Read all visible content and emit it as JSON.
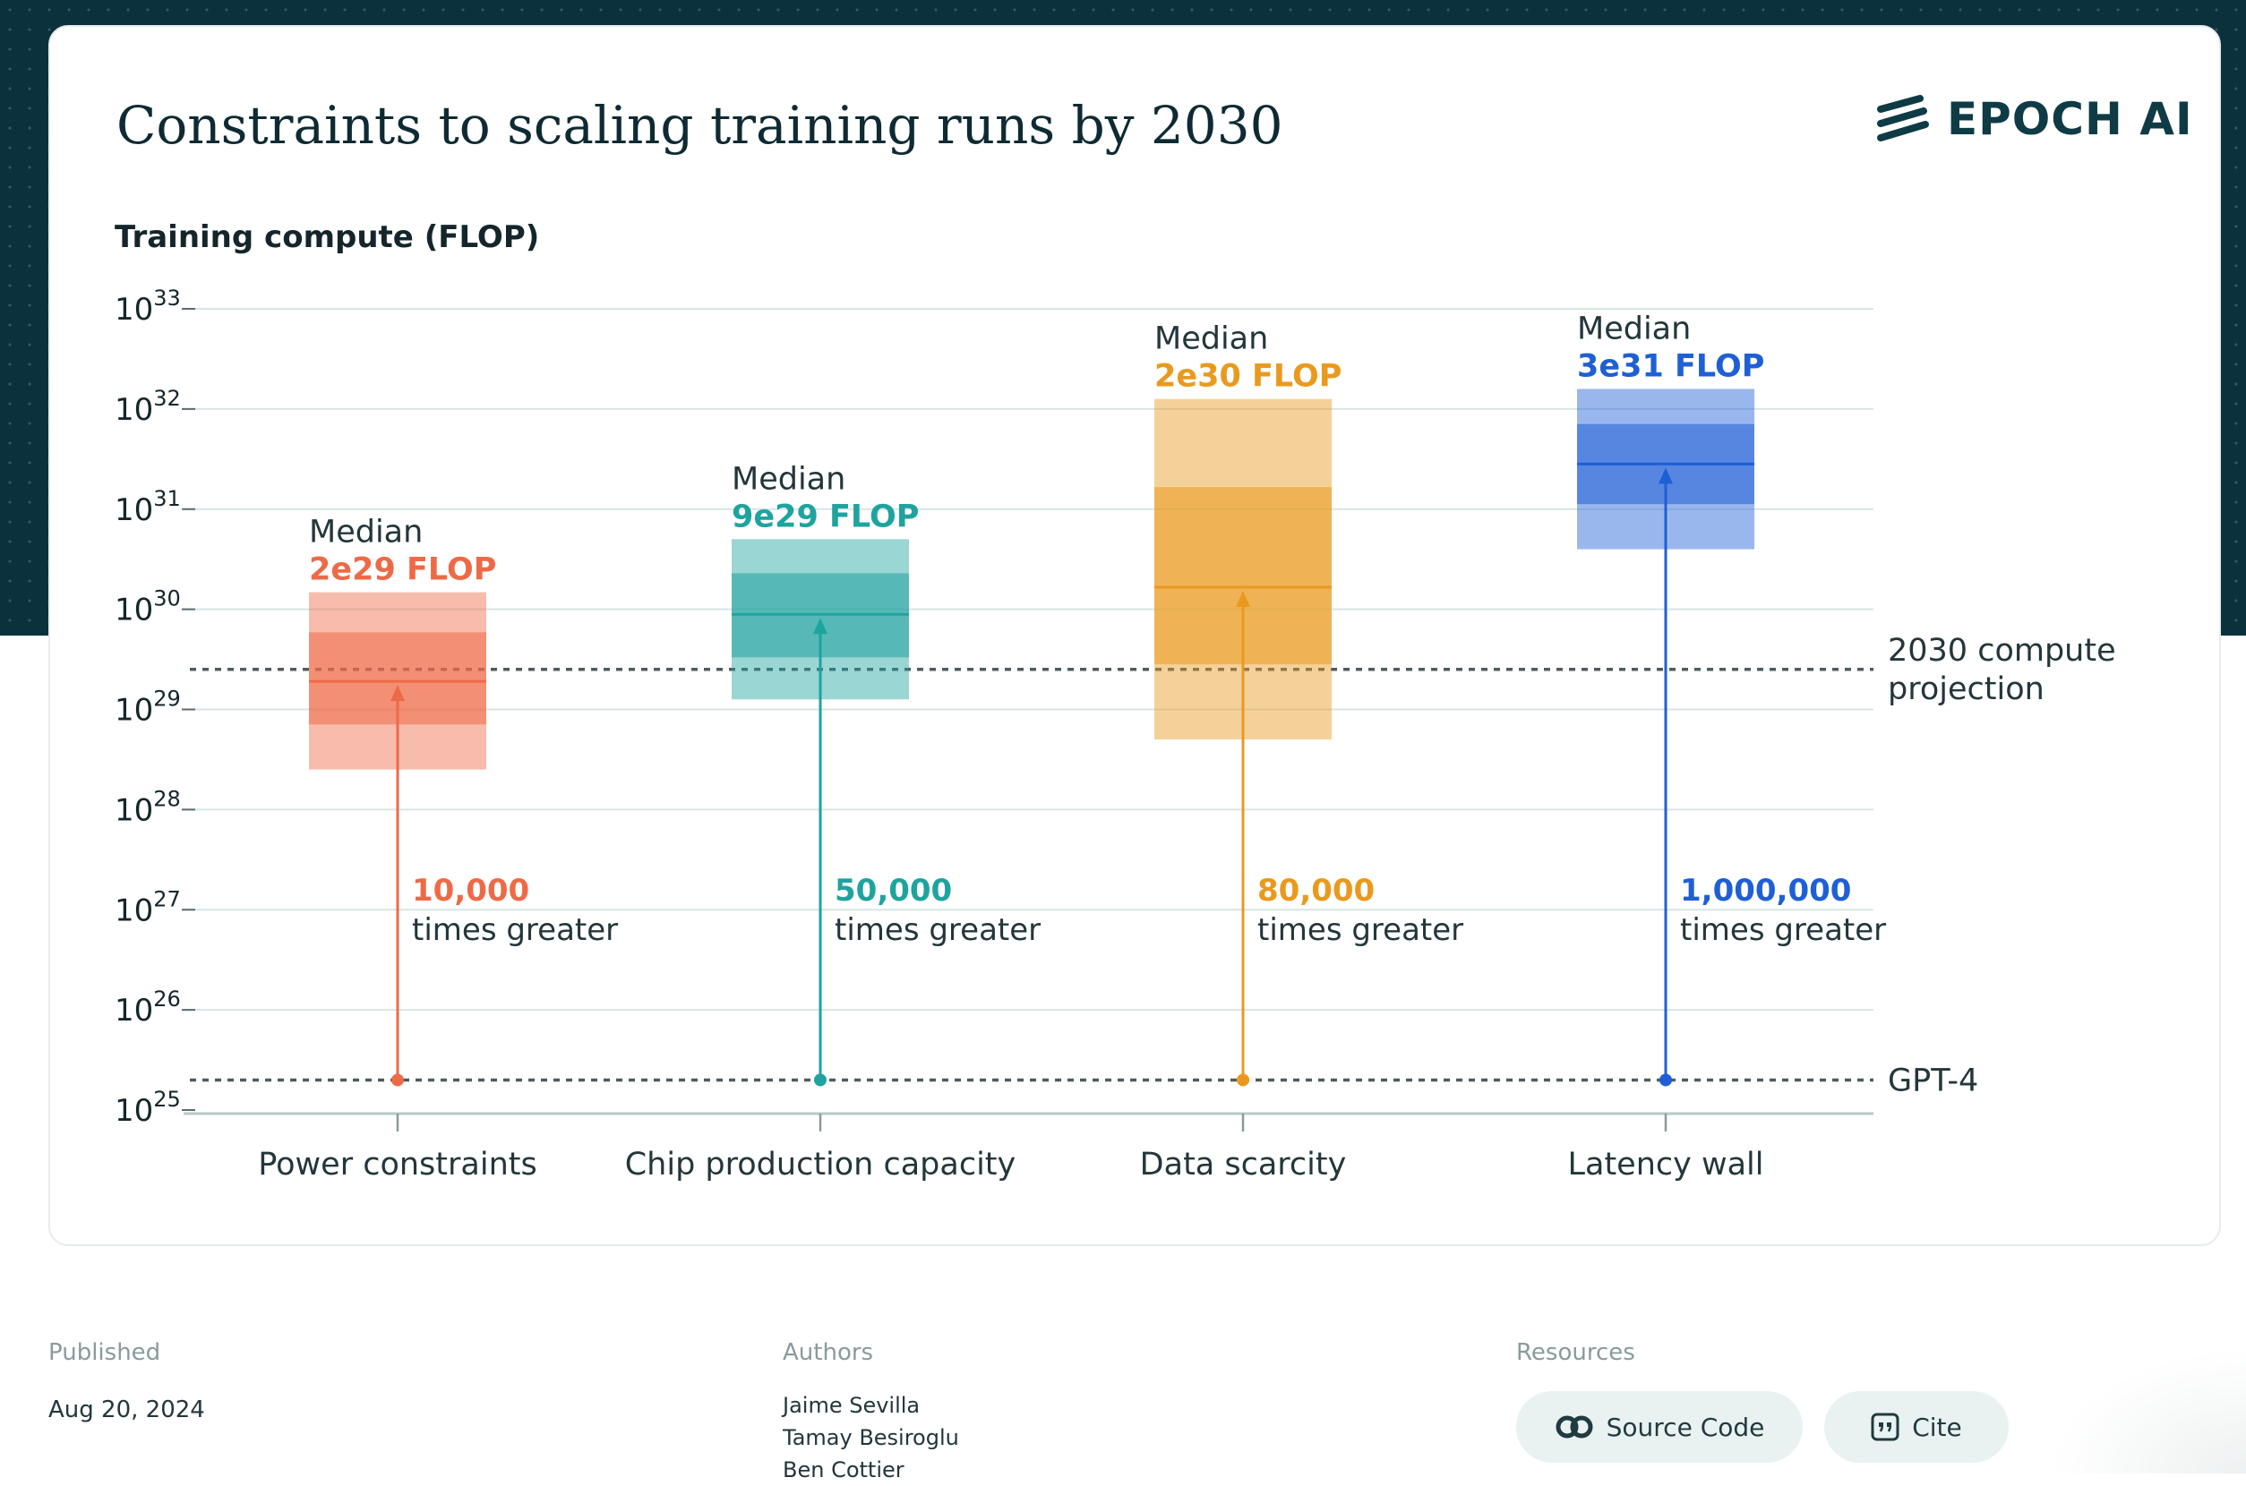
{
  "page": {
    "logo_text": "EPOCH AI",
    "colors": {
      "band": "#0b323c",
      "text_dark": "#0e2a33",
      "grid": "#d8e5e5"
    }
  },
  "chart_data": {
    "type": "box",
    "title": "Constraints to scaling training runs by 2030",
    "ylabel": "Training compute (FLOP)",
    "y_scale": "log10",
    "ylim_exponent": [
      25,
      33
    ],
    "y_ticks": [
      {
        "base": "10",
        "exp": "25"
      },
      {
        "base": "10",
        "exp": "26"
      },
      {
        "base": "10",
        "exp": "27"
      },
      {
        "base": "10",
        "exp": "28"
      },
      {
        "base": "10",
        "exp": "29"
      },
      {
        "base": "10",
        "exp": "30"
      },
      {
        "base": "10",
        "exp": "31"
      },
      {
        "base": "10",
        "exp": "32"
      },
      {
        "base": "10",
        "exp": "33"
      }
    ],
    "grid": true,
    "reference_lines": [
      {
        "label_lines": [
          "2030 compute",
          "projection"
        ],
        "value_log10": 29.4
      },
      {
        "label_lines": [
          "GPT-4"
        ],
        "value_log10": 25.3
      }
    ],
    "baseline_log10": 25.3,
    "categories": [
      {
        "name": "Power constraints",
        "color": "#ee6a47",
        "median_caption": "Median",
        "median_label": "2e29 FLOP",
        "median_log10": 29.28,
        "range_outer_log10": [
          28.4,
          30.17
        ],
        "range_inner_log10": [
          28.85,
          29.77
        ],
        "multiplier": "10,000",
        "multiplier_caption": "times greater"
      },
      {
        "name": "Chip production capacity",
        "color": "#1fa39f",
        "median_caption": "Median",
        "median_label": "9e29 FLOP",
        "median_log10": 29.95,
        "range_outer_log10": [
          29.1,
          30.7
        ],
        "range_inner_log10": [
          29.52,
          30.36
        ],
        "multiplier": "50,000",
        "multiplier_caption": "times greater"
      },
      {
        "name": "Data scarcity",
        "color": "#e99a1e",
        "median_caption": "Median",
        "median_label": "2e30 FLOP",
        "median_log10": 30.22,
        "range_outer_log10": [
          28.7,
          32.1
        ],
        "range_inner_log10": [
          29.45,
          31.22
        ],
        "multiplier": "80,000",
        "multiplier_caption": "times greater"
      },
      {
        "name": "Latency wall",
        "color": "#1f5fd6",
        "median_caption": "Median",
        "median_label": "3e31 FLOP",
        "median_log10": 31.45,
        "range_outer_log10": [
          30.6,
          32.2
        ],
        "range_inner_log10": [
          31.05,
          31.85
        ],
        "multiplier": "1,000,000",
        "multiplier_caption": "times greater"
      }
    ]
  },
  "footer": {
    "published_label": "Published",
    "published_value": "Aug 20, 2024",
    "authors_label": "Authors",
    "authors": [
      "Jaime Sevilla",
      "Tamay Besiroglu",
      "Ben Cottier"
    ],
    "resources_label": "Resources",
    "source_code_label": "Source Code",
    "cite_label": "Cite",
    "source_icon": "creative-commons-icon",
    "cite_icon": "quote-icon"
  }
}
